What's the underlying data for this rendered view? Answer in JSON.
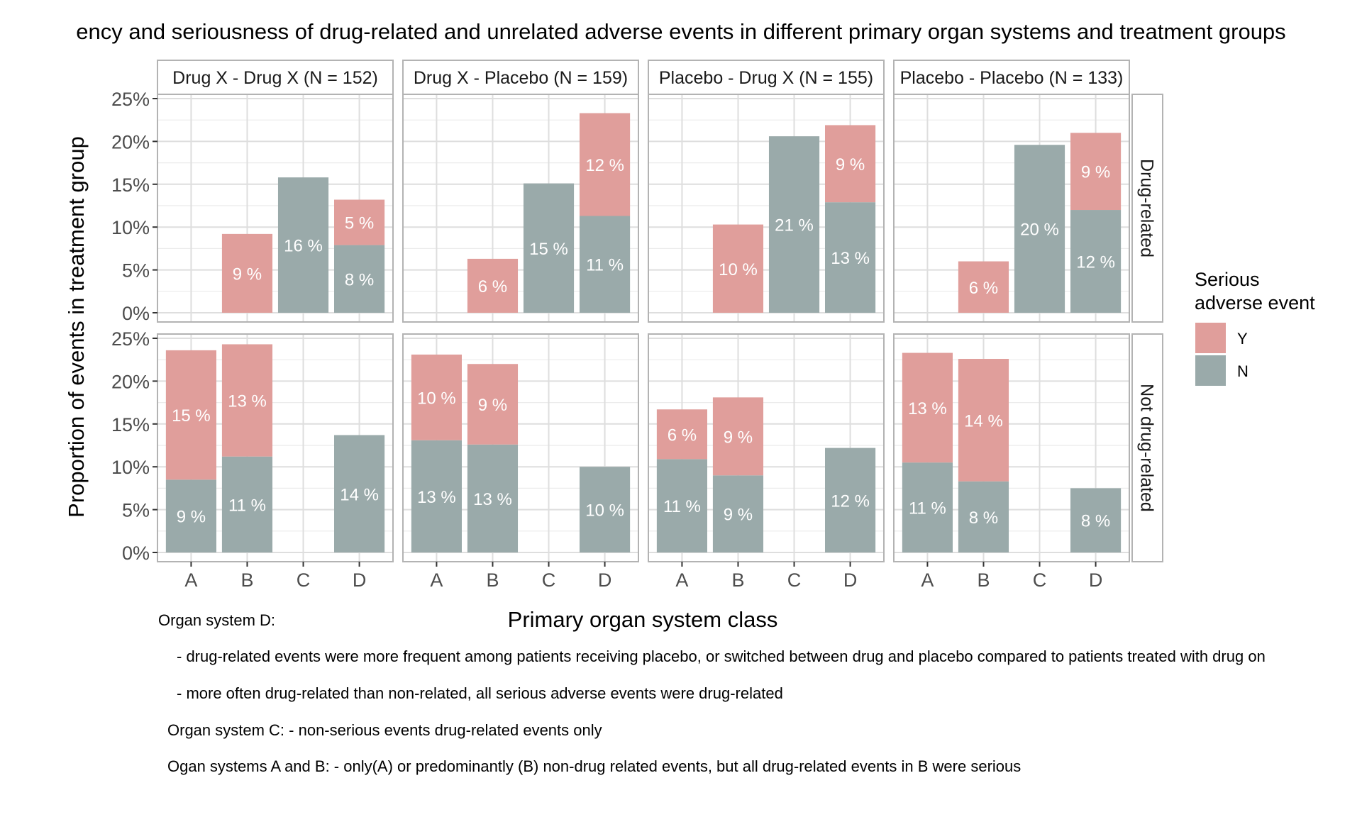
{
  "chart_data": {
    "type": "bar",
    "stacked": true,
    "title": "ency and seriousness of drug-related and unrelated adverse events in different primary organ systems and treatment groups",
    "xlabel": "Primary organ system class",
    "ylabel": "Proportion of events in treatment group",
    "ylim": [
      0,
      25
    ],
    "yticks": [
      "0%",
      "5%",
      "10%",
      "15%",
      "20%",
      "25%"
    ],
    "ytick_values": [
      0,
      5,
      10,
      15,
      20,
      25
    ],
    "categories": [
      "A",
      "B",
      "C",
      "D"
    ],
    "grid": true,
    "facet_columns": [
      "Drug X - Drug X (N = 152)",
      "Drug X - Placebo (N = 159)",
      "Placebo - Drug X (N = 155)",
      "Placebo - Placebo (N = 133)"
    ],
    "facet_rows": [
      "Drug-related",
      "Not drug-related"
    ],
    "legend": {
      "title_line1": "Serious",
      "title_line2": "adverse event",
      "position": "right",
      "items": [
        {
          "key": "Y",
          "label": "Y",
          "color": "#e09e9b"
        },
        {
          "key": "N",
          "label": "N",
          "color": "#9aaaaa"
        }
      ]
    },
    "panels": [
      {
        "row": "Drug-related",
        "column": "Drug X - Drug X (N = 152)",
        "series": {
          "N": [
            0,
            0,
            15.8,
            7.9
          ],
          "Y": [
            0,
            9.2,
            0,
            5.3
          ]
        },
        "labels": {
          "N": [
            "",
            "",
            "16 %",
            "8 %"
          ],
          "Y": [
            "",
            "9 %",
            "",
            "5 %"
          ]
        }
      },
      {
        "row": "Drug-related",
        "column": "Drug X - Placebo (N = 159)",
        "series": {
          "N": [
            0,
            0,
            15.1,
            11.3
          ],
          "Y": [
            0,
            6.3,
            0,
            12.0
          ]
        },
        "labels": {
          "N": [
            "",
            "",
            "15 %",
            "11 %"
          ],
          "Y": [
            "",
            "6 %",
            "",
            "12 %"
          ]
        }
      },
      {
        "row": "Drug-related",
        "column": "Placebo - Drug X (N = 155)",
        "series": {
          "N": [
            0,
            0,
            20.6,
            12.9
          ],
          "Y": [
            0,
            10.3,
            0,
            9.0
          ]
        },
        "labels": {
          "N": [
            "",
            "",
            "21 %",
            "13 %"
          ],
          "Y": [
            "",
            "10 %",
            "",
            "9 %"
          ]
        }
      },
      {
        "row": "Drug-related",
        "column": "Placebo - Placebo (N = 133)",
        "series": {
          "N": [
            0,
            0,
            19.6,
            12.0
          ],
          "Y": [
            0,
            6.0,
            0,
            9.0
          ]
        },
        "labels": {
          "N": [
            "",
            "",
            "20 %",
            "12 %"
          ],
          "Y": [
            "",
            "6 %",
            "",
            "9 %"
          ]
        }
      },
      {
        "row": "Not drug-related",
        "column": "Drug X - Drug X (N = 152)",
        "series": {
          "N": [
            8.5,
            11.2,
            0,
            13.7
          ],
          "Y": [
            15.1,
            13.1,
            0,
            0
          ]
        },
        "labels": {
          "N": [
            "9 %",
            "11 %",
            "",
            "14 %"
          ],
          "Y": [
            "15 %",
            "13 %",
            "",
            ""
          ]
        }
      },
      {
        "row": "Not drug-related",
        "column": "Drug X - Placebo (N = 159)",
        "series": {
          "N": [
            13.1,
            12.6,
            0,
            10.0
          ],
          "Y": [
            10.0,
            9.4,
            0,
            0
          ]
        },
        "labels": {
          "N": [
            "13 %",
            "13 %",
            "",
            "10 %"
          ],
          "Y": [
            "10 %",
            "9 %",
            "",
            ""
          ]
        }
      },
      {
        "row": "Not drug-related",
        "column": "Placebo - Drug X (N = 155)",
        "series": {
          "N": [
            10.9,
            9.0,
            0,
            12.2
          ],
          "Y": [
            5.8,
            9.1,
            0,
            0
          ]
        },
        "labels": {
          "N": [
            "11 %",
            "9 %",
            "",
            "12 %"
          ],
          "Y": [
            "6 %",
            "9 %",
            "",
            ""
          ]
        }
      },
      {
        "row": "Not drug-related",
        "column": "Placebo - Placebo (N = 133)",
        "series": {
          "N": [
            10.5,
            8.3,
            0,
            7.5
          ],
          "Y": [
            12.8,
            14.3,
            0,
            0
          ]
        },
        "labels": {
          "N": [
            "11 %",
            "8 %",
            "",
            "8 %"
          ],
          "Y": [
            "13 %",
            "14 %",
            "",
            ""
          ]
        }
      }
    ],
    "annotations": [
      "Organ system D:",
      "- drug-related events were more frequent among patients receiving placebo, or switched between drug and placebo compared to patients treated with drug on",
      "- more often drug-related than non-related, all serious adverse events were drug-related",
      "Organ system C: - non-serious events drug-related events only",
      "Ogan systems A and B: - only(A) or predominantly (B) non-drug related events, but all drug-related events in B were serious"
    ]
  }
}
